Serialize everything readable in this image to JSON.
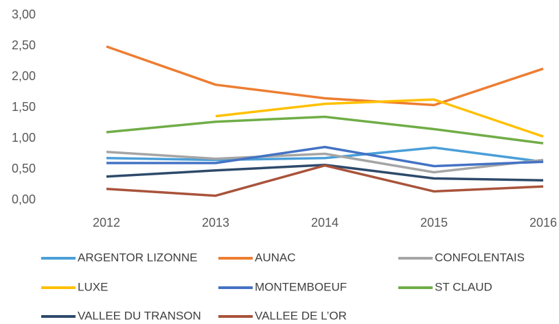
{
  "chart_data": {
    "type": "line",
    "categories": [
      "2012",
      "2013",
      "2014",
      "2015",
      "2016"
    ],
    "ylim": [
      0,
      3
    ],
    "yticks": [
      {
        "value": 0,
        "label": "0,00"
      },
      {
        "value": 0.5,
        "label": "0,50"
      },
      {
        "value": 1,
        "label": "1,00"
      },
      {
        "value": 1.5,
        "label": "1,50"
      },
      {
        "value": 2,
        "label": "2,00"
      },
      {
        "value": 2.5,
        "label": "2,50"
      },
      {
        "value": 3,
        "label": "3,00"
      }
    ],
    "grid": false,
    "legend": "bottom",
    "series": [
      {
        "name": "ARGENTOR LIZONNE",
        "color": "#4a9fd8",
        "values": [
          0.68,
          0.65,
          0.68,
          0.85,
          0.62
        ]
      },
      {
        "name": "AUNAC",
        "color": "#ed7d31",
        "values": [
          2.49,
          1.87,
          1.65,
          1.54,
          2.13
        ]
      },
      {
        "name": "CONFOLENTAIS",
        "color": "#a5a5a5",
        "values": [
          0.78,
          0.67,
          0.75,
          0.45,
          0.65
        ]
      },
      {
        "name": "LUXE",
        "color": "#ffc000",
        "values": [
          null,
          1.36,
          1.56,
          1.63,
          1.03
        ]
      },
      {
        "name": "MONTEMBOEUF",
        "color": "#4472c4",
        "values": [
          0.6,
          0.6,
          0.86,
          0.55,
          0.62
        ]
      },
      {
        "name": "ST CLAUD",
        "color": "#70ad47",
        "values": [
          1.1,
          1.27,
          1.35,
          1.15,
          0.92
        ]
      },
      {
        "name": "VALLEE DU TRANSON",
        "color": "#2e4a6b",
        "values": [
          0.38,
          0.48,
          0.57,
          0.35,
          0.32
        ]
      },
      {
        "name": "VALLEE DE L’OR",
        "color": "#a9533b",
        "values": [
          0.18,
          0.07,
          0.56,
          0.14,
          0.22
        ]
      }
    ]
  }
}
